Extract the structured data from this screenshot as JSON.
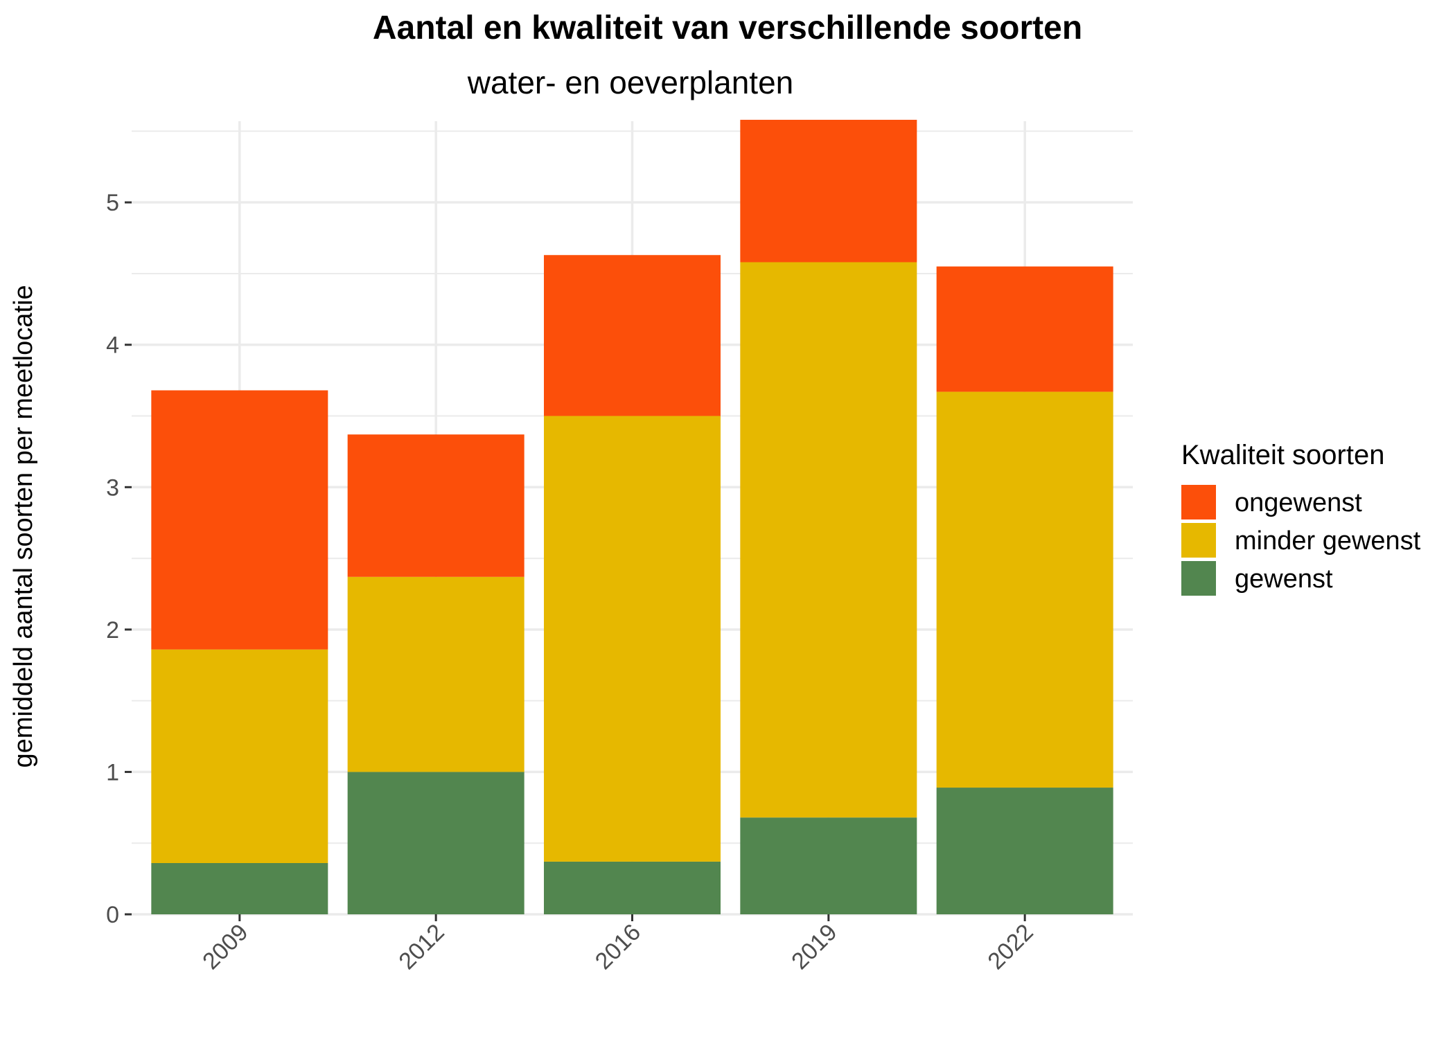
{
  "chart_data": {
    "type": "bar",
    "stacked": true,
    "title": "Aantal en kwaliteit van verschillende soorten",
    "subtitle": "water- en oeverplanten",
    "xlabel": "",
    "ylabel": "gemiddeld aantal soorten per meetlocatie",
    "categories": [
      "2009",
      "2012",
      "2016",
      "2019",
      "2022"
    ],
    "ylim": [
      0,
      5.57
    ],
    "yticks": [
      "0",
      "1",
      "2",
      "3",
      "4",
      "5"
    ],
    "grid": true,
    "legend": {
      "title": "Kwaliteit soorten",
      "position": "right",
      "items": [
        "ongewenst",
        "minder gewenst",
        "gewenst"
      ]
    },
    "series": [
      {
        "name": "gewenst",
        "color": "#52864f",
        "values": [
          0.36,
          1.0,
          0.37,
          0.68,
          0.89
        ]
      },
      {
        "name": "minder gewenst",
        "color": "#e6b800",
        "values": [
          1.5,
          1.37,
          3.13,
          3.9,
          2.78
        ]
      },
      {
        "name": "ongewenst",
        "color": "#fc4f0a",
        "values": [
          1.82,
          1.0,
          1.13,
          1.0,
          0.88
        ]
      }
    ]
  }
}
